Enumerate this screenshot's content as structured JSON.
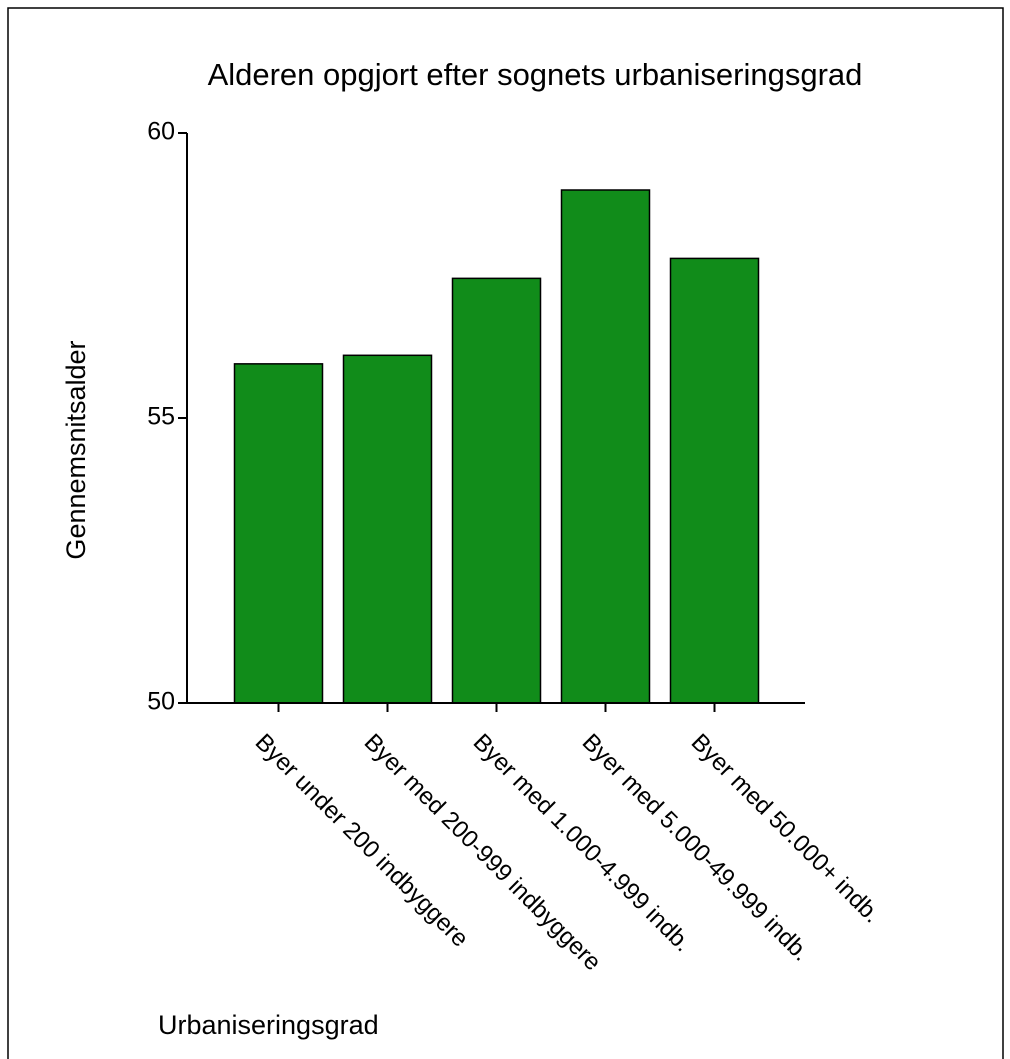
{
  "chart_data": {
    "type": "bar",
    "title": "Alderen opgjort efter sognets urbaniseringsgrad",
    "y_label": "Gennemsnitsalder",
    "x_label": "Urbaniseringsgrad",
    "categories": [
      "Byer under 200 indbyggere",
      "Byer med 200-999 indbyggere",
      "Byer med 1.000-4.999 indb.",
      "Byer med 5.000-49.999 indb.",
      "Byer med 50.000+ indb."
    ],
    "values": [
      55.95,
      56.1,
      57.45,
      59.0,
      57.8
    ],
    "color": "#118c1a",
    "ylim": [
      50,
      60
    ],
    "yticks": [
      50,
      55,
      60
    ],
    "grid": false
  }
}
